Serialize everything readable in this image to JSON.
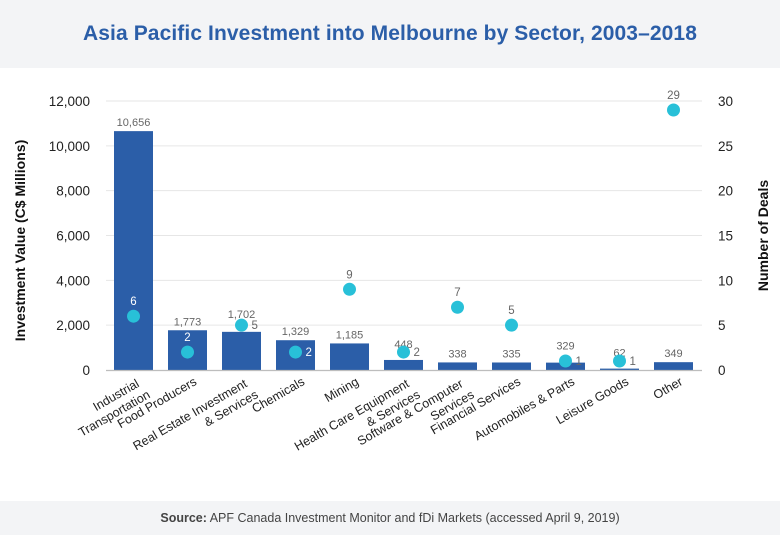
{
  "title": "Asia Pacific Investment into Melbourne by Sector, 2003–2018",
  "source": {
    "prefix": "Source:",
    "text": " APF Canada Investment Monitor and fDi Markets (accessed April 9, 2019)"
  },
  "colors": {
    "bar": "#2b5ea8",
    "dot": "#28c0d8",
    "title": "#2b5ea8",
    "band": "#f3f4f6",
    "grid": "#e6e6e6"
  },
  "chart_data": {
    "type": "bar",
    "title": "Asia Pacific Investment into Melbourne by Sector, 2003–2018",
    "categories": [
      [
        "Industrial",
        "Transportation"
      ],
      [
        "Food Producers"
      ],
      [
        "Real Estate Investment",
        "& Services"
      ],
      [
        "Chemicals"
      ],
      [
        "Mining"
      ],
      [
        "Health Care Equipment",
        "& Services"
      ],
      [
        "Software & Computer",
        "Services"
      ],
      [
        "Financial Services"
      ],
      [
        "Automobiles & Parts"
      ],
      [
        "Leisure Goods"
      ],
      [
        "Other"
      ]
    ],
    "series": [
      {
        "name": "Investment Value (C$ Millions)",
        "type": "bar",
        "axis": "left",
        "values": [
          10656,
          1773,
          1702,
          1329,
          1185,
          448,
          338,
          335,
          329,
          62,
          349
        ],
        "labels": [
          "10,656",
          "1,773",
          "1,702",
          "1,329",
          "1,185",
          "448",
          "338",
          "335",
          "329",
          "62",
          "349"
        ]
      },
      {
        "name": "Number of Deals",
        "type": "scatter",
        "axis": "right",
        "values": [
          6,
          2,
          5,
          2,
          9,
          2,
          7,
          5,
          1,
          1,
          29
        ],
        "labels": [
          "6",
          "2",
          "5",
          "2",
          "9",
          "2",
          "7",
          "5",
          "1",
          "1",
          "29"
        ]
      }
    ],
    "ylabel": "Investment Value (C$ Millions)",
    "y2label": "Number of Deals",
    "ylim": [
      0,
      12000
    ],
    "y2lim": [
      0,
      30
    ],
    "yticks": [
      "0",
      "2,000",
      "4,000",
      "6,000",
      "8,000",
      "10,000",
      "12,000"
    ],
    "y2ticks": [
      "0",
      "5",
      "10",
      "15",
      "20",
      "25",
      "30"
    ],
    "grid": true,
    "legend": "none"
  }
}
